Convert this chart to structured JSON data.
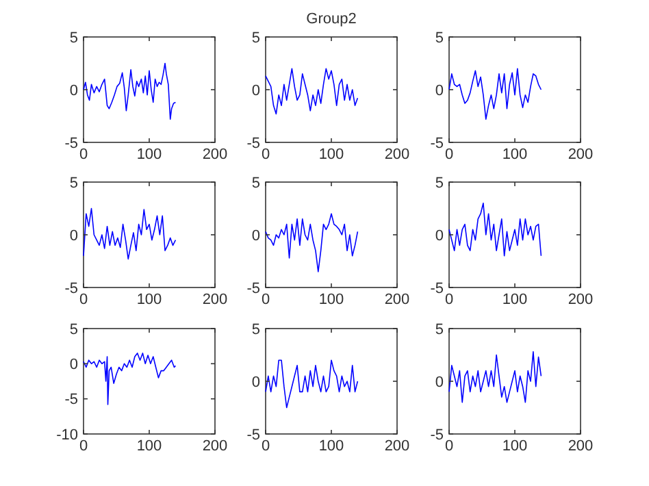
{
  "chart_data": [
    {
      "type": "line",
      "color": "#0000ff",
      "xlim": [
        0,
        200
      ],
      "xticks": [
        0,
        100,
        200
      ],
      "ylim": [
        -5,
        5
      ],
      "yticks": [
        -5,
        0,
        5
      ],
      "x": [
        0,
        3,
        6,
        9,
        12,
        16,
        20,
        24,
        28,
        32,
        36,
        39,
        43,
        47,
        51,
        55,
        59,
        62,
        65,
        68,
        72,
        75,
        78,
        81,
        84,
        88,
        91,
        94,
        97,
        100,
        103,
        106,
        109,
        112,
        115,
        118,
        121,
        124,
        126,
        129,
        132,
        134,
        137,
        140
      ],
      "values": [
        0,
        0.7,
        -0.5,
        -1,
        0.5,
        -0.3,
        0.3,
        -0.2,
        0.5,
        1,
        -1.5,
        -1.8,
        -1.2,
        -0.5,
        0.3,
        0.6,
        1.6,
        0.2,
        -2,
        -0.5,
        1.9,
        0.3,
        -0.6,
        0.8,
        0.3,
        1,
        -0.3,
        1.3,
        -0.5,
        1.8,
        0,
        -1.2,
        1,
        0.3,
        0.7,
        0.5,
        1.4,
        2.5,
        1.5,
        0.5,
        -2.8,
        -1.8,
        -1.3,
        -1.2
      ]
    },
    {
      "type": "line",
      "title": "Group2",
      "color": "#0000ff",
      "xlim": [
        0,
        200
      ],
      "xticks": [
        0,
        100,
        200
      ],
      "ylim": [
        -5,
        5
      ],
      "yticks": [
        -5,
        0,
        5
      ],
      "x": [
        0,
        4,
        8,
        12,
        16,
        20,
        24,
        28,
        32,
        36,
        40,
        44,
        48,
        52,
        56,
        60,
        64,
        68,
        72,
        76,
        80,
        84,
        88,
        92,
        96,
        100,
        104,
        108,
        112,
        116,
        120,
        124,
        128,
        132,
        136,
        140
      ],
      "values": [
        1.3,
        0.8,
        0.3,
        -1.5,
        -2.3,
        -0.5,
        -1.5,
        0.5,
        -1,
        0.5,
        2,
        0.3,
        -1,
        -0.5,
        1.5,
        0.5,
        -0.5,
        -2,
        -0.5,
        -1.5,
        0,
        -1.3,
        0.5,
        2,
        1,
        1.8,
        0.5,
        -1.5,
        0.5,
        1,
        -1,
        0.5,
        -1,
        0,
        -1.5,
        -0.8
      ]
    },
    {
      "type": "line",
      "color": "#0000ff",
      "xlim": [
        0,
        200
      ],
      "xticks": [
        0,
        100,
        200
      ],
      "ylim": [
        -5,
        5
      ],
      "yticks": [
        -5,
        0,
        5
      ],
      "x": [
        0,
        4,
        8,
        12,
        16,
        20,
        24,
        28,
        32,
        36,
        40,
        44,
        48,
        52,
        56,
        60,
        64,
        68,
        72,
        76,
        80,
        84,
        88,
        92,
        96,
        100,
        104,
        108,
        112,
        116,
        120,
        124,
        128,
        132,
        136,
        140
      ],
      "values": [
        0,
        1.5,
        0.5,
        0.3,
        0.5,
        -0.5,
        -1.3,
        -1,
        -0.3,
        0.8,
        1.8,
        0.3,
        1.2,
        -0.5,
        -2.8,
        -1.5,
        -0.5,
        -1.8,
        -0.5,
        1.5,
        -0.3,
        1.5,
        -1.8,
        0.5,
        1.6,
        -0.5,
        2,
        -0.5,
        -1.7,
        -0.5,
        -1.2,
        0.3,
        1.5,
        1.3,
        0.5,
        0
      ]
    },
    {
      "type": "line",
      "color": "#0000ff",
      "xlim": [
        0,
        200
      ],
      "xticks": [
        0,
        100,
        200
      ],
      "ylim": [
        -5,
        5
      ],
      "yticks": [
        -5,
        0,
        5
      ],
      "x": [
        0,
        4,
        8,
        12,
        16,
        20,
        24,
        28,
        32,
        36,
        40,
        44,
        48,
        52,
        56,
        60,
        64,
        68,
        72,
        76,
        80,
        84,
        88,
        92,
        96,
        100,
        104,
        108,
        112,
        116,
        120,
        124,
        128,
        132,
        136,
        140
      ],
      "values": [
        -2,
        2,
        0.8,
        2.5,
        0,
        -0.5,
        -1,
        0,
        -1.3,
        0.8,
        -1,
        0.3,
        -1,
        -0.3,
        -1.2,
        1,
        -0.5,
        -2.3,
        -1,
        0.2,
        -1.5,
        1,
        0,
        2.4,
        0.5,
        1,
        -0.5,
        0.5,
        1.8,
        0,
        1.8,
        -1.5,
        -1,
        -0.3,
        -1,
        -0.5
      ]
    },
    {
      "type": "line",
      "color": "#0000ff",
      "xlim": [
        0,
        200
      ],
      "xticks": [
        0,
        100,
        200
      ],
      "ylim": [
        -5,
        5
      ],
      "yticks": [
        -5,
        0,
        5
      ],
      "x": [
        0,
        4,
        8,
        12,
        16,
        20,
        24,
        28,
        32,
        36,
        40,
        44,
        48,
        52,
        56,
        60,
        64,
        68,
        72,
        76,
        80,
        84,
        88,
        92,
        96,
        100,
        104,
        108,
        112,
        116,
        120,
        124,
        128,
        132,
        136,
        140
      ],
      "values": [
        0.3,
        -0.3,
        -0.5,
        -1,
        0,
        -0.3,
        0.5,
        0,
        1,
        -2.2,
        1,
        -0.5,
        1.5,
        -1,
        1.5,
        0,
        -0.5,
        1,
        -0.5,
        -1.5,
        -3.5,
        -1.5,
        1,
        0.5,
        1,
        2,
        1,
        0.8,
        0.5,
        0,
        1,
        -1.5,
        0,
        -2,
        -1,
        0.3
      ]
    },
    {
      "type": "line",
      "color": "#0000ff",
      "xlim": [
        0,
        200
      ],
      "xticks": [
        0,
        100,
        200
      ],
      "ylim": [
        -5,
        5
      ],
      "yticks": [
        -5,
        0,
        5
      ],
      "x": [
        0,
        4,
        8,
        12,
        16,
        20,
        24,
        28,
        32,
        36,
        40,
        44,
        48,
        52,
        56,
        60,
        64,
        68,
        72,
        76,
        80,
        84,
        88,
        92,
        96,
        100,
        104,
        108,
        112,
        116,
        120,
        124,
        128,
        132,
        136,
        140
      ],
      "values": [
        0.5,
        -0.5,
        -1.5,
        0.5,
        -1,
        0.5,
        1,
        -1,
        -1.5,
        0.5,
        -0.5,
        1.5,
        2,
        3,
        0,
        2,
        -0.5,
        1,
        -1.5,
        0,
        1.5,
        -2,
        0.3,
        -1.5,
        -0.5,
        0.5,
        -1,
        1.5,
        -0.5,
        1.5,
        0,
        0.8,
        -0.5,
        0.8,
        1,
        -2
      ]
    },
    {
      "type": "line",
      "color": "#0000ff",
      "xlim": [
        0,
        200
      ],
      "xticks": [
        0,
        100,
        200
      ],
      "ylim": [
        -10,
        5
      ],
      "yticks": [
        -10,
        -5,
        0,
        5
      ],
      "x": [
        0,
        4,
        8,
        12,
        16,
        20,
        24,
        28,
        32,
        34,
        36,
        37,
        39,
        42,
        46,
        50,
        54,
        58,
        62,
        66,
        70,
        74,
        78,
        82,
        86,
        90,
        94,
        98,
        102,
        106,
        110,
        114,
        118,
        122,
        126,
        130,
        134,
        138,
        140
      ],
      "values": [
        0.3,
        -0.5,
        0.5,
        0,
        0.3,
        -0.5,
        0.5,
        0,
        0.3,
        -2.5,
        1,
        -5.8,
        -1,
        -0.5,
        -2.8,
        -1.5,
        -0.5,
        -1,
        0,
        -0.5,
        0.5,
        -0.5,
        1,
        1.5,
        0.5,
        1.5,
        0,
        1.2,
        0,
        1,
        -0.5,
        -2,
        -1,
        -1,
        -0.5,
        0,
        0.5,
        -0.5,
        -0.3
      ]
    },
    {
      "type": "line",
      "color": "#0000ff",
      "xlim": [
        0,
        200
      ],
      "xticks": [
        0,
        100,
        200
      ],
      "ylim": [
        -5,
        5
      ],
      "yticks": [
        -5,
        0,
        5
      ],
      "x": [
        0,
        4,
        8,
        12,
        16,
        20,
        24,
        28,
        32,
        36,
        40,
        44,
        48,
        52,
        56,
        60,
        64,
        68,
        72,
        76,
        80,
        84,
        88,
        92,
        96,
        100,
        104,
        108,
        112,
        116,
        120,
        124,
        128,
        132,
        136,
        140
      ],
      "values": [
        -1,
        0.5,
        -1,
        0.5,
        -0.5,
        2,
        2,
        -0.5,
        -2.5,
        -1.5,
        -0.5,
        0.5,
        1.5,
        -1,
        -1,
        0.5,
        -1,
        1,
        -0.5,
        1.5,
        0,
        -1,
        0.5,
        -1,
        -0.5,
        2,
        1,
        0.5,
        -1,
        0.5,
        -0.5,
        0,
        -1,
        1.5,
        -1,
        0
      ]
    },
    {
      "type": "line",
      "color": "#0000ff",
      "xlim": [
        0,
        200
      ],
      "xticks": [
        0,
        100,
        200
      ],
      "ylim": [
        -5,
        5
      ],
      "yticks": [
        -5,
        0,
        5
      ],
      "x": [
        0,
        4,
        8,
        12,
        16,
        20,
        24,
        28,
        32,
        36,
        40,
        44,
        48,
        52,
        56,
        60,
        64,
        68,
        72,
        76,
        80,
        84,
        88,
        92,
        96,
        100,
        104,
        108,
        112,
        116,
        120,
        124,
        128,
        132,
        136,
        140
      ],
      "values": [
        -1,
        1.5,
        0.5,
        -0.5,
        1,
        -2,
        0.5,
        1,
        -1,
        0.5,
        -0.5,
        1,
        -1,
        0,
        1,
        -0.5,
        1,
        -0.5,
        2.5,
        0.5,
        -1.5,
        -0.5,
        -2,
        -1,
        0,
        1,
        -1,
        0.5,
        -0.5,
        -2,
        1,
        0,
        2.8,
        -0.5,
        2.3,
        0.5
      ]
    }
  ]
}
